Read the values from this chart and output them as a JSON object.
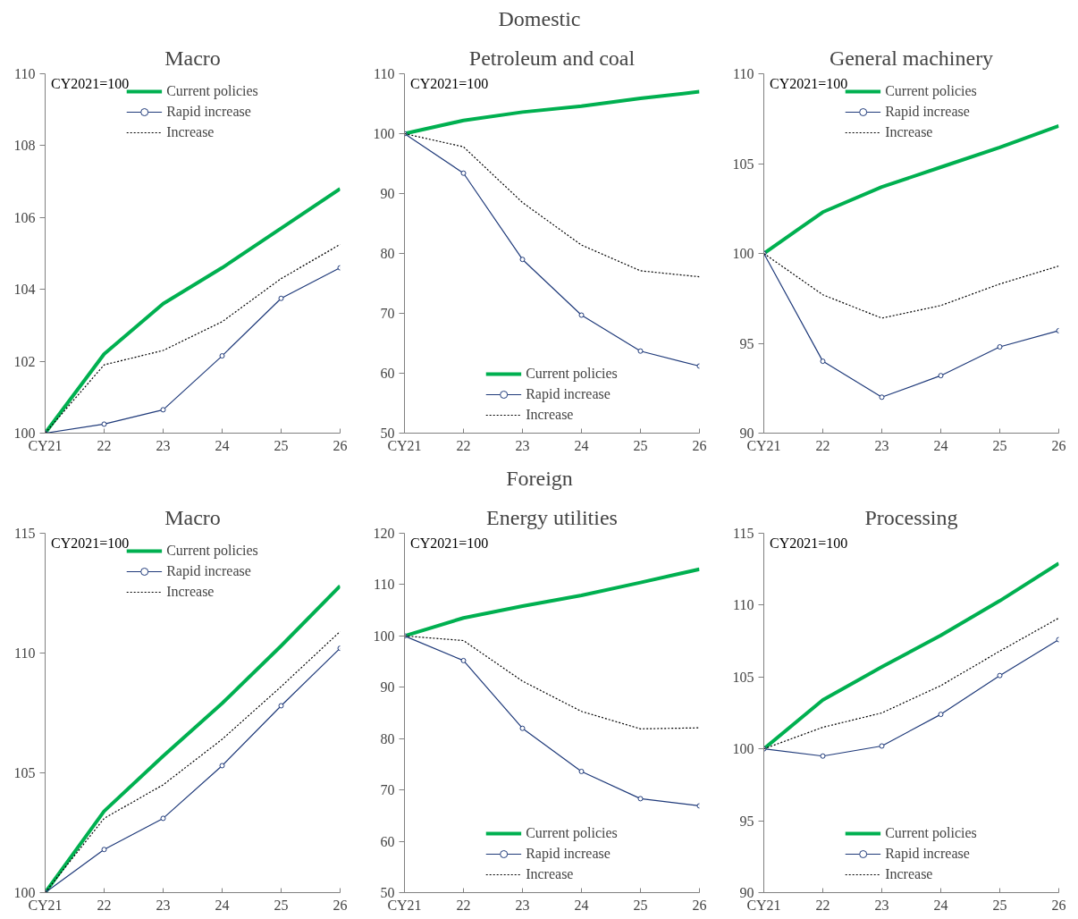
{
  "chart_data": [
    {
      "type": "other",
      "title": "Domestic"
    },
    {
      "type": "line",
      "title": "Macro",
      "annotations": [
        "CY2021=100"
      ],
      "categories": [
        "CY21",
        "22",
        "23",
        "24",
        "25",
        "26"
      ],
      "ylim": [
        100,
        110
      ],
      "yticks": [
        100,
        102,
        104,
        106,
        108,
        110
      ],
      "legend": "top",
      "series": [
        {
          "name": "Current policies",
          "color": "#00b050",
          "marker": "none",
          "line_style": "solid",
          "values": [
            100,
            102.2,
            103.6,
            104.6,
            105.7,
            106.8
          ]
        },
        {
          "name": "Rapid increase",
          "color": "#1f3a7a",
          "marker": "circle",
          "line_style": "solid",
          "values": [
            100,
            100.25,
            100.65,
            102.15,
            103.75,
            104.6
          ]
        },
        {
          "name": "Increase",
          "color": "#000000",
          "marker": "none",
          "line_style": "dotted",
          "values": [
            100,
            101.9,
            102.3,
            103.1,
            104.3,
            105.25
          ]
        }
      ]
    },
    {
      "type": "line",
      "title": "Petroleum and coal",
      "annotations": [
        "CY2021=100"
      ],
      "categories": [
        "CY21",
        "22",
        "23",
        "24",
        "25",
        "26"
      ],
      "ylim": [
        50,
        110
      ],
      "yticks": [
        50,
        60,
        70,
        80,
        90,
        100,
        110
      ],
      "legend": "bottom",
      "series": [
        {
          "name": "Current policies",
          "color": "#00b050",
          "marker": "none",
          "line_style": "solid",
          "values": [
            100,
            102.2,
            103.6,
            104.6,
            105.9,
            107.0
          ]
        },
        {
          "name": "Rapid increase",
          "color": "#1f3a7a",
          "marker": "circle",
          "line_style": "solid",
          "values": [
            100,
            93.4,
            79.0,
            69.7,
            63.7,
            61.2
          ]
        },
        {
          "name": "Increase",
          "color": "#000000",
          "marker": "none",
          "line_style": "dotted",
          "values": [
            100,
            97.8,
            88.5,
            81.4,
            77.1,
            76.1
          ]
        }
      ]
    },
    {
      "type": "line",
      "title": "General machinery",
      "annotations": [
        "CY2021=100"
      ],
      "categories": [
        "CY21",
        "22",
        "23",
        "24",
        "25",
        "26"
      ],
      "ylim": [
        90,
        110
      ],
      "yticks": [
        90,
        95,
        100,
        105,
        110
      ],
      "legend": "top",
      "series": [
        {
          "name": "Current policies",
          "color": "#00b050",
          "marker": "none",
          "line_style": "solid",
          "values": [
            100,
            102.3,
            103.7,
            104.8,
            105.9,
            107.1
          ]
        },
        {
          "name": "Rapid increase",
          "color": "#1f3a7a",
          "marker": "circle",
          "line_style": "solid",
          "values": [
            100,
            94.0,
            92.0,
            93.2,
            94.8,
            95.7
          ]
        },
        {
          "name": "Increase",
          "color": "#000000",
          "marker": "none",
          "line_style": "dotted",
          "values": [
            100,
            97.7,
            96.4,
            97.1,
            98.3,
            99.3
          ]
        }
      ]
    },
    {
      "type": "other",
      "title": "Foreign"
    },
    {
      "type": "line",
      "title": "Macro",
      "annotations": [
        "CY2021=100"
      ],
      "categories": [
        "CY21",
        "22",
        "23",
        "24",
        "25",
        "26"
      ],
      "ylim": [
        100,
        115
      ],
      "yticks": [
        100,
        105,
        110,
        115
      ],
      "legend": "top",
      "series": [
        {
          "name": "Current policies",
          "color": "#00b050",
          "marker": "none",
          "line_style": "solid",
          "values": [
            100,
            103.4,
            105.7,
            107.9,
            110.3,
            112.8
          ]
        },
        {
          "name": "Rapid increase",
          "color": "#1f3a7a",
          "marker": "circle",
          "line_style": "solid",
          "values": [
            100,
            101.8,
            103.1,
            105.3,
            107.8,
            110.2
          ]
        },
        {
          "name": "Increase",
          "color": "#000000",
          "marker": "none",
          "line_style": "dotted",
          "values": [
            100,
            103.1,
            104.5,
            106.4,
            108.6,
            110.9
          ]
        }
      ]
    },
    {
      "type": "line",
      "title": "Energy utilities",
      "annotations": [
        "CY2021=100"
      ],
      "categories": [
        "CY21",
        "22",
        "23",
        "24",
        "25",
        "26"
      ],
      "ylim": [
        50,
        120
      ],
      "yticks": [
        50,
        60,
        70,
        80,
        90,
        100,
        110,
        120
      ],
      "legend": "bottom",
      "series": [
        {
          "name": "Current policies",
          "color": "#00b050",
          "marker": "none",
          "line_style": "solid",
          "values": [
            100,
            103.5,
            105.8,
            107.9,
            110.4,
            113.0
          ]
        },
        {
          "name": "Rapid increase",
          "color": "#1f3a7a",
          "marker": "circle",
          "line_style": "solid",
          "values": [
            100,
            95.2,
            82.0,
            73.6,
            68.3,
            66.9
          ]
        },
        {
          "name": "Increase",
          "color": "#000000",
          "marker": "none",
          "line_style": "dotted",
          "values": [
            100,
            99.1,
            91.2,
            85.3,
            81.9,
            82.1
          ]
        }
      ]
    },
    {
      "type": "line",
      "title": "Processing",
      "annotations": [
        "CY2021=100"
      ],
      "categories": [
        "CY21",
        "22",
        "23",
        "24",
        "25",
        "26"
      ],
      "ylim": [
        90,
        115
      ],
      "yticks": [
        90,
        95,
        100,
        105,
        110,
        115
      ],
      "legend": "bottom",
      "series": [
        {
          "name": "Current policies",
          "color": "#00b050",
          "marker": "none",
          "line_style": "solid",
          "values": [
            100,
            103.4,
            105.7,
            107.9,
            110.3,
            112.9
          ]
        },
        {
          "name": "Rapid increase",
          "color": "#1f3a7a",
          "marker": "circle",
          "line_style": "solid",
          "values": [
            100,
            99.5,
            100.2,
            102.4,
            105.1,
            107.6
          ]
        },
        {
          "name": "Increase",
          "color": "#000000",
          "marker": "none",
          "line_style": "dotted",
          "values": [
            100,
            101.5,
            102.5,
            104.4,
            106.8,
            109.1
          ]
        }
      ]
    }
  ]
}
